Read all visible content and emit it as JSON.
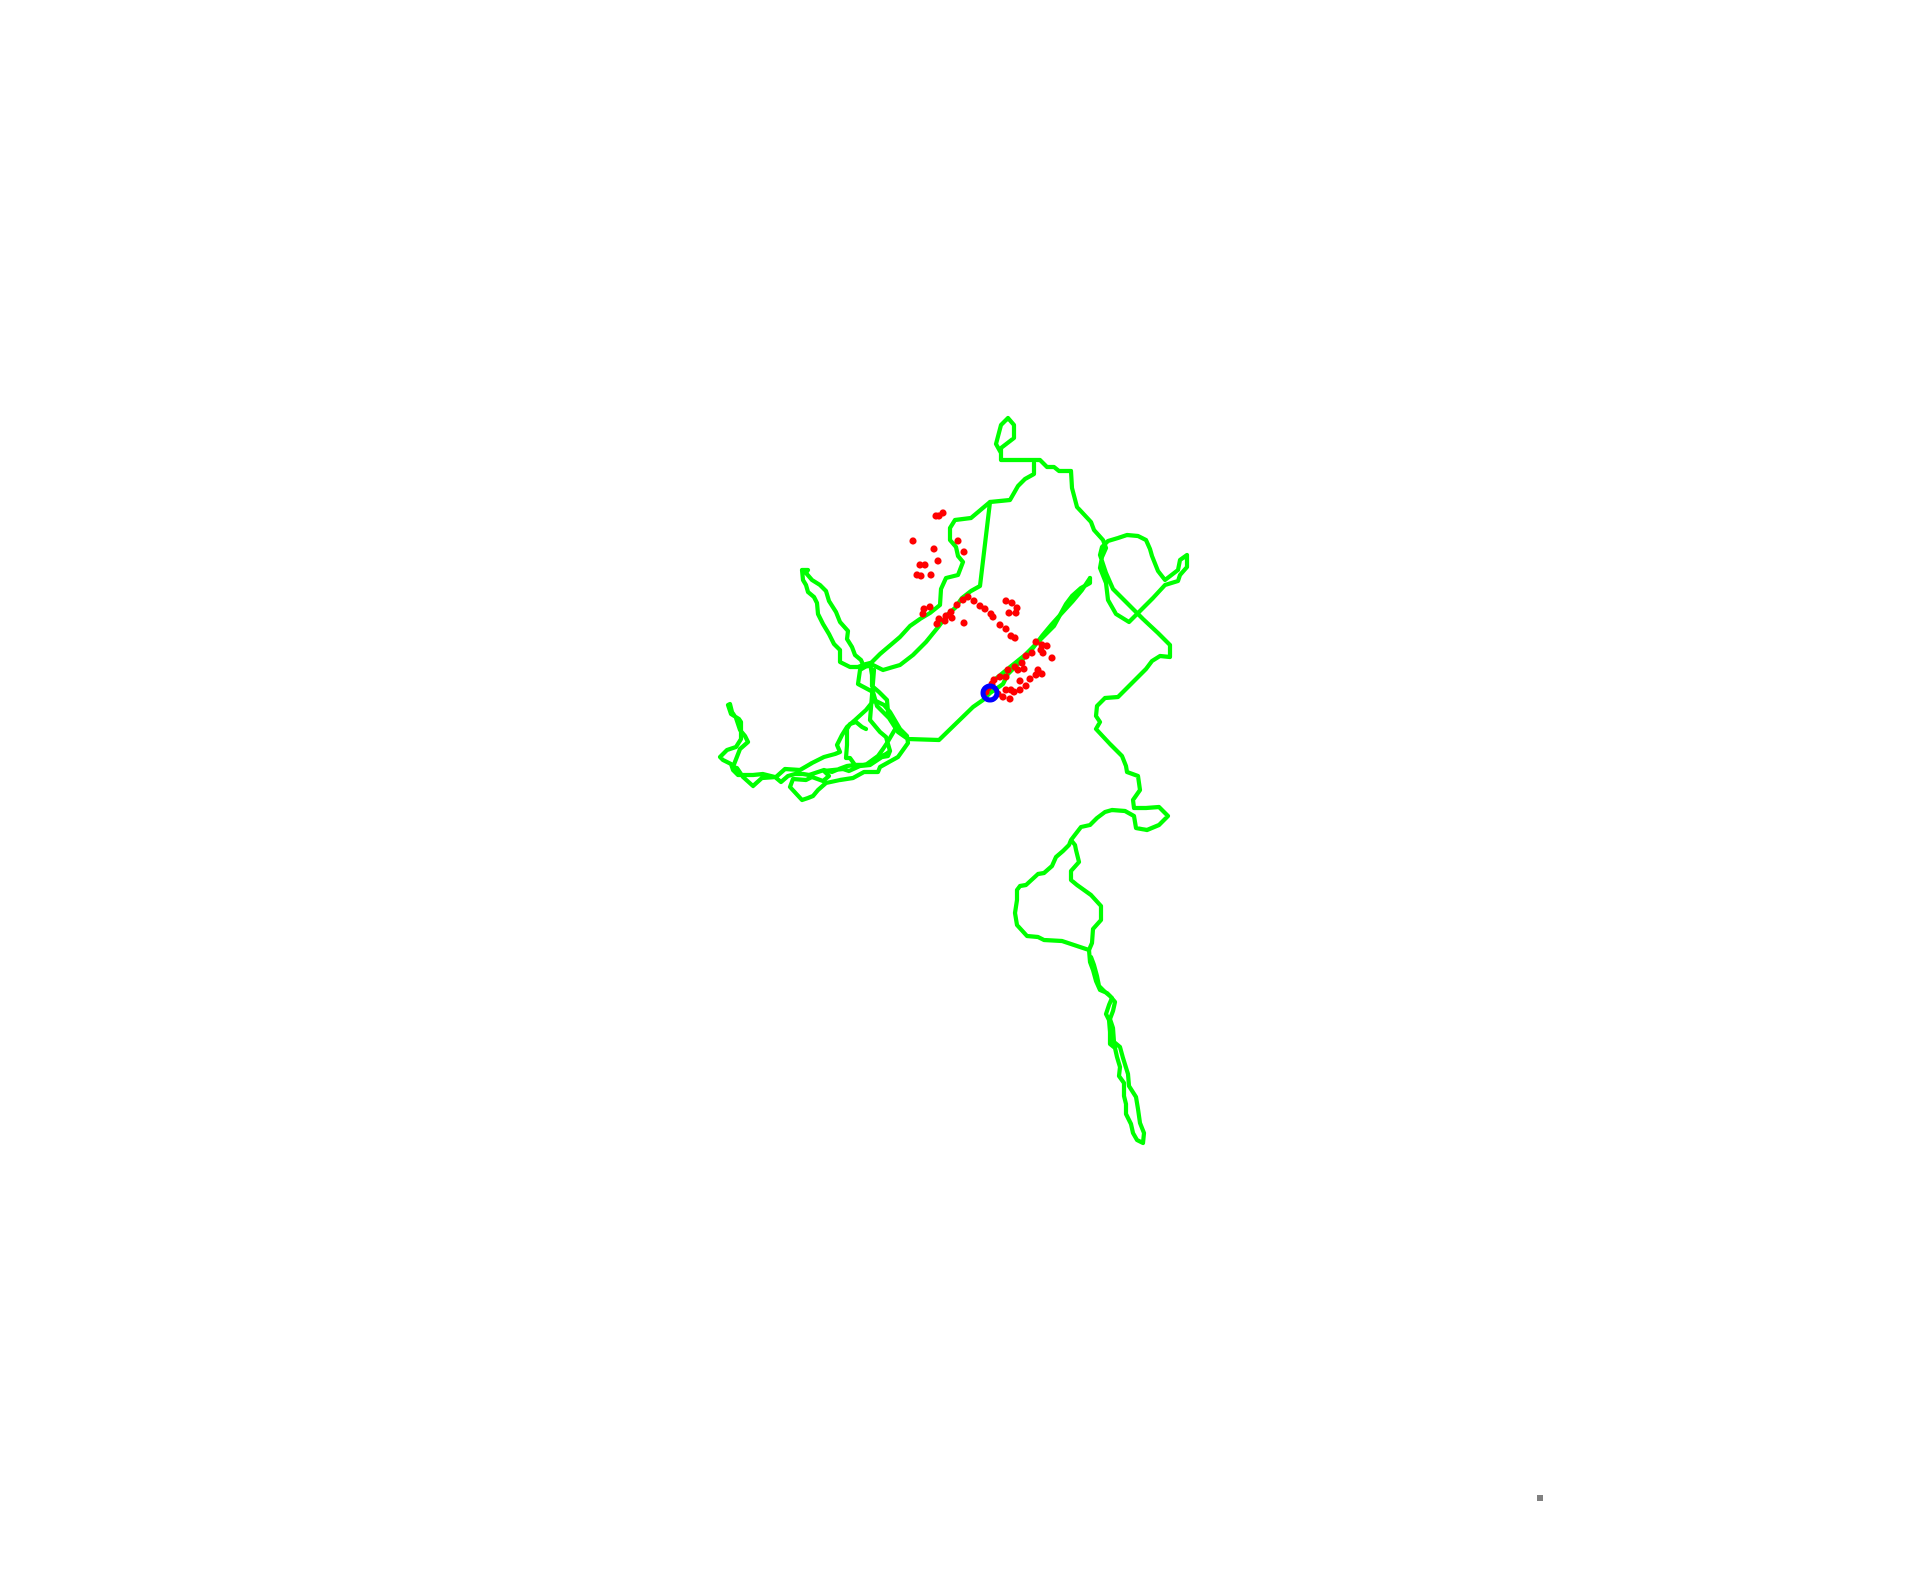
{
  "map": {
    "background_color": "#ffffff",
    "route_color": "#00ff00",
    "marker_color": "#ff0000",
    "current_position_color": "#0000ff",
    "corner_mark_color": "#808080",
    "elements": [
      "route-path",
      "waypoint-markers",
      "current-position-marker",
      "corner-mark"
    ]
  }
}
